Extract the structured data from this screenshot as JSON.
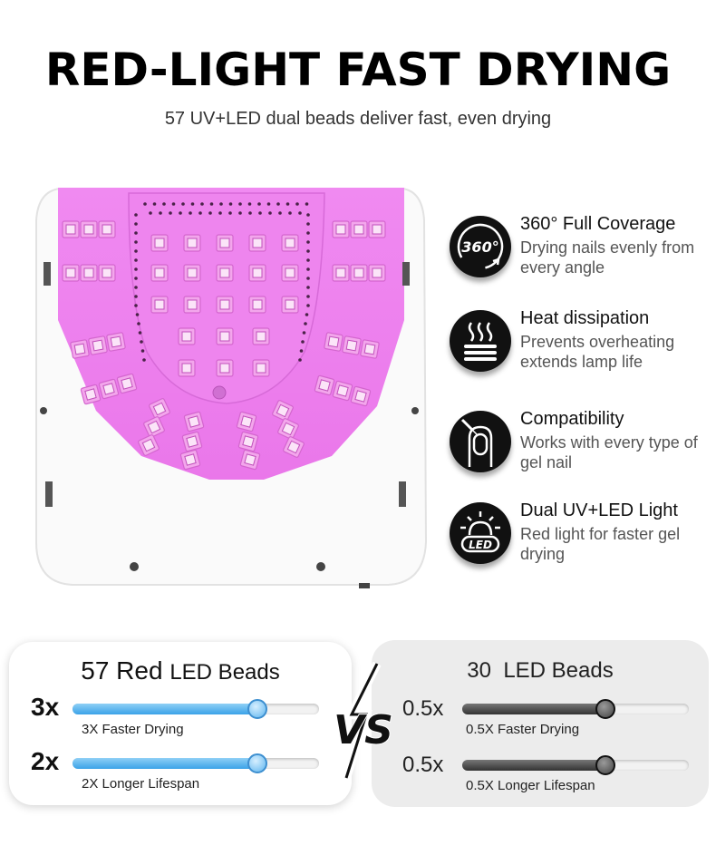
{
  "header": {
    "title": "RED-LIGHT FAST DRYING",
    "subtitle": "57 UV+LED dual beads deliver fast, even drying"
  },
  "features": [
    {
      "icon": "360-coverage-icon",
      "title": "360° Full Coverage",
      "desc": "Drying nails evenly from every angle"
    },
    {
      "icon": "heat-dissipation-icon",
      "title": "Heat dissipation",
      "desc": "Prevents overheating extends lamp life"
    },
    {
      "icon": "nail-compatibility-icon",
      "title": "Compatibility",
      "desc": "Works with every type of gel nail"
    },
    {
      "icon": "led-light-icon",
      "title": "Dual UV+LED Light",
      "desc": "Red light for faster gel drying"
    }
  ],
  "icon_text": {
    "coverage": "360°",
    "led": "LED"
  },
  "comparison": {
    "left": {
      "title_big": "57 Red",
      "title_small": "LED Beads",
      "bars": [
        {
          "multiplier": "3x",
          "label": "3X Faster Drying",
          "level": 0.75
        },
        {
          "multiplier": "2x",
          "label": "2X Longer Lifespan",
          "level": 0.75
        }
      ]
    },
    "vs_text": "VS",
    "right": {
      "title": "30  LED Beads",
      "bars": [
        {
          "multiplier": "0.5x",
          "label": "0.5X Faster Drying",
          "level": 0.63
        },
        {
          "multiplier": "0.5x",
          "label": "0.5X Longer Lifespan",
          "level": 0.63
        }
      ]
    }
  },
  "colors": {
    "lamp_glow": "#ef7cf0",
    "bead": "#e98cdf",
    "accent_blue": "#3aa2e8",
    "dark": "#111111"
  }
}
